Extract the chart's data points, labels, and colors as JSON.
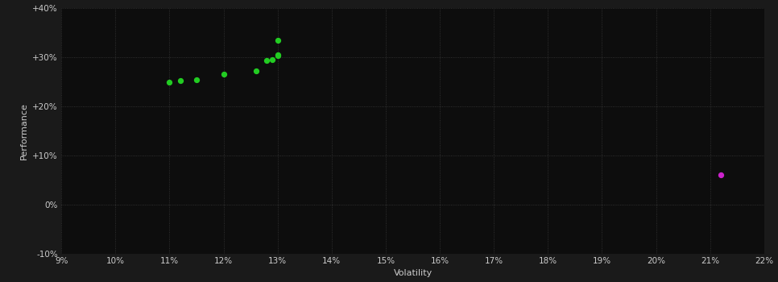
{
  "background_color": "#1a1a1a",
  "plot_bg_color": "#0d0d0d",
  "grid_color": "#3a3a3a",
  "text_color": "#cccccc",
  "xlabel": "Volatility",
  "ylabel": "Performance",
  "xlim": [
    0.09,
    0.22
  ],
  "ylim": [
    -0.1,
    0.4
  ],
  "xticks": [
    0.09,
    0.1,
    0.11,
    0.12,
    0.13,
    0.14,
    0.15,
    0.16,
    0.17,
    0.18,
    0.19,
    0.2,
    0.21,
    0.22
  ],
  "yticks": [
    -0.1,
    0.0,
    0.1,
    0.2,
    0.3,
    0.4
  ],
  "ytick_labels": [
    "-10%",
    "0%",
    "+10%",
    "+20%",
    "+30%",
    "+40%"
  ],
  "green_points": [
    [
      0.11,
      0.248
    ],
    [
      0.112,
      0.252
    ],
    [
      0.115,
      0.253
    ],
    [
      0.12,
      0.265
    ],
    [
      0.126,
      0.272
    ],
    [
      0.128,
      0.292
    ],
    [
      0.129,
      0.295
    ],
    [
      0.13,
      0.302
    ],
    [
      0.13,
      0.305
    ],
    [
      0.13,
      0.334
    ]
  ],
  "magenta_points": [
    [
      0.212,
      0.06
    ]
  ],
  "green_color": "#22cc22",
  "magenta_color": "#cc22cc",
  "point_size": 18
}
